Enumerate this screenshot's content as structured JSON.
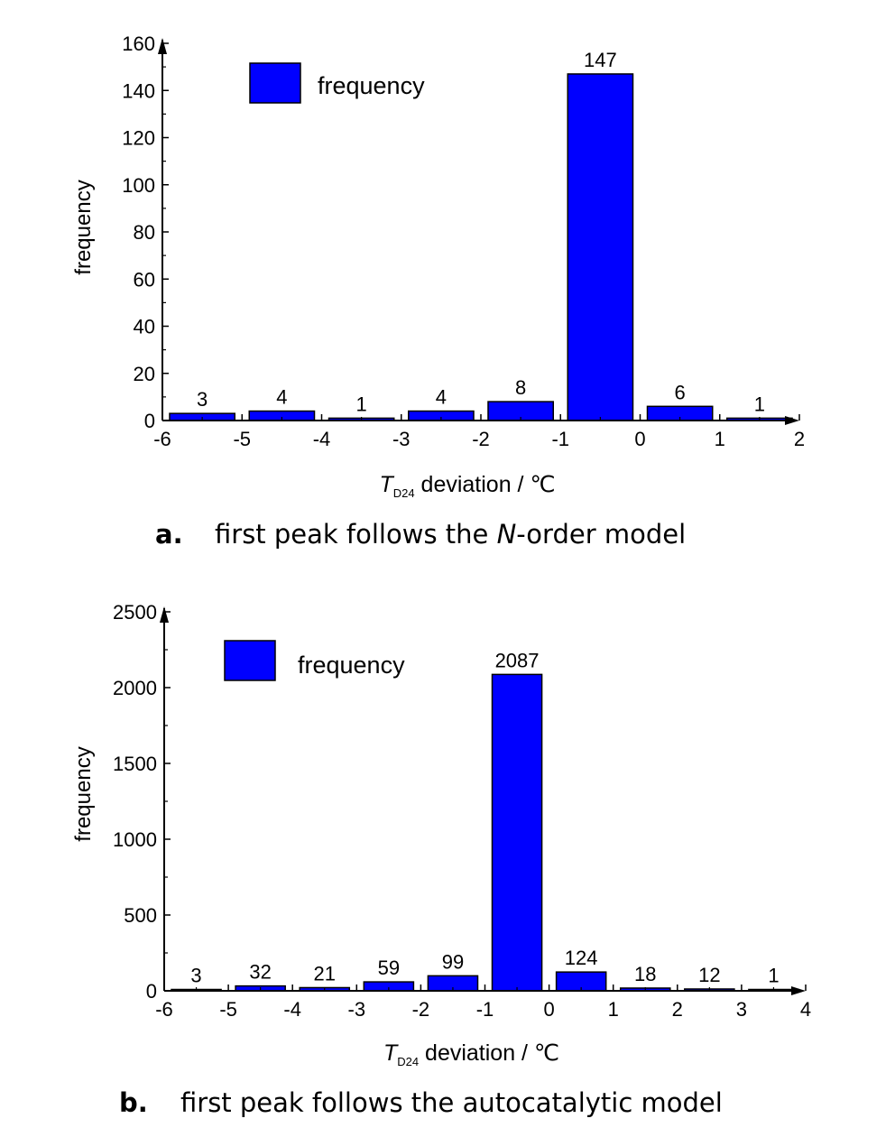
{
  "chart_data": [
    {
      "type": "bar",
      "title": "",
      "xlabel": {
        "main": "T",
        "sub": "D24",
        "rest": " deviation / ℃"
      },
      "ylabel": "frequency",
      "x_ticks": [
        "-6",
        "-5",
        "-4",
        "-3",
        "-2",
        "-1",
        "0",
        "1",
        "2"
      ],
      "x_tick_values": [
        -6,
        -5,
        -4,
        -3,
        -2,
        -1,
        0,
        1,
        2
      ],
      "xlim": [
        -6,
        2
      ],
      "ylim": [
        0,
        160
      ],
      "y_ticks": [
        "0",
        "20",
        "40",
        "60",
        "80",
        "100",
        "120",
        "140",
        "160"
      ],
      "y_tick_values": [
        0,
        20,
        40,
        60,
        80,
        100,
        120,
        140,
        160
      ],
      "bins": [
        [
          -6,
          -5
        ],
        [
          -5,
          -4
        ],
        [
          -4,
          -3
        ],
        [
          -3,
          -2
        ],
        [
          -2,
          -1
        ],
        [
          -1,
          0
        ],
        [
          0,
          1
        ],
        [
          1,
          2
        ]
      ],
      "values": [
        3,
        4,
        1,
        4,
        8,
        147,
        6,
        1
      ],
      "value_labels": [
        "3",
        "4",
        "1",
        "4",
        "8",
        "147",
        "6",
        "1"
      ],
      "legend": {
        "label": "frequency",
        "placement": "top-left"
      },
      "bar_color": "#0000FF",
      "caption": {
        "letter": "a.",
        "text_before": "first peak follows the ",
        "italic": "N",
        "text_after": "-order model"
      }
    },
    {
      "type": "bar",
      "title": "",
      "xlabel": {
        "main": "T",
        "sub": "D24",
        "rest": " deviation / ℃"
      },
      "ylabel": "frequency",
      "x_ticks": [
        "-6",
        "-5",
        "-4",
        "-3",
        "-2",
        "-1",
        "0",
        "1",
        "2",
        "3",
        "4"
      ],
      "x_tick_values": [
        -6,
        -5,
        -4,
        -3,
        -2,
        -1,
        0,
        1,
        2,
        3,
        4
      ],
      "xlim": [
        -6,
        4
      ],
      "ylim": [
        0,
        2500
      ],
      "y_ticks": [
        "0",
        "500",
        "1000",
        "1500",
        "2000",
        "2500"
      ],
      "y_tick_values": [
        0,
        500,
        1000,
        1500,
        2000,
        2500
      ],
      "bins": [
        [
          -6,
          -5
        ],
        [
          -5,
          -4
        ],
        [
          -4,
          -3
        ],
        [
          -3,
          -2
        ],
        [
          -2,
          -1
        ],
        [
          -1,
          0
        ],
        [
          0,
          1
        ],
        [
          1,
          2
        ],
        [
          2,
          3
        ],
        [
          3,
          4
        ]
      ],
      "values": [
        3,
        32,
        21,
        59,
        99,
        2087,
        124,
        18,
        12,
        1
      ],
      "value_labels": [
        "3",
        "32",
        "21",
        "59",
        "99",
        "2087",
        "124",
        "18",
        "12",
        "1"
      ],
      "legend": {
        "label": "frequency",
        "placement": "top-left"
      },
      "bar_color": "#0000FF",
      "caption": {
        "letter": "b.",
        "text_before": "first peak follows the autocatalytic model",
        "italic": "",
        "text_after": ""
      }
    }
  ]
}
